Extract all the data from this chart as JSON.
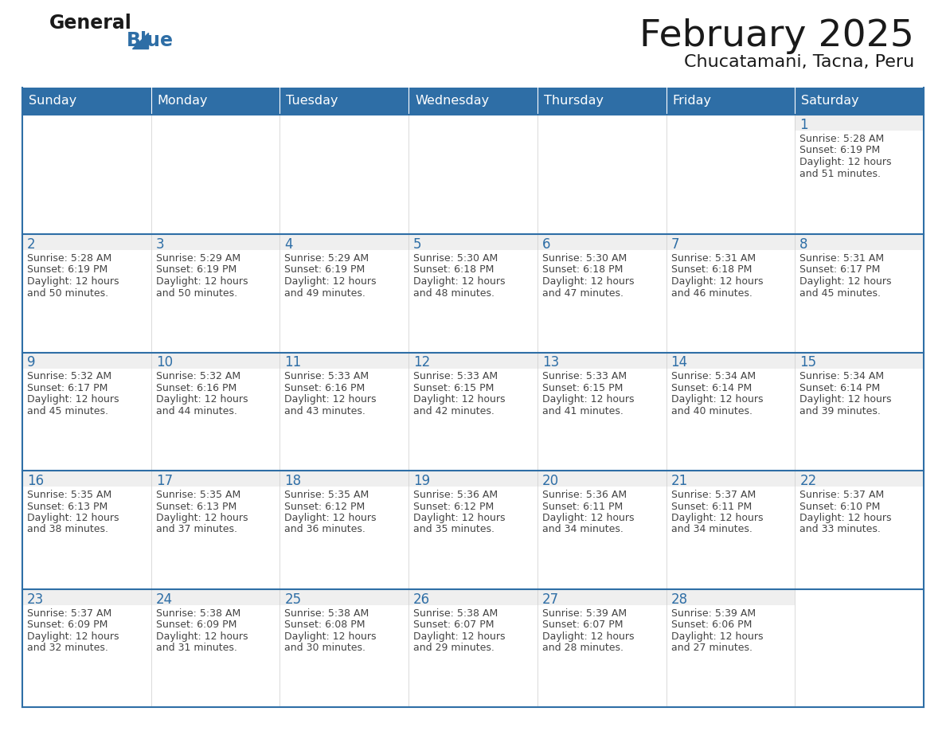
{
  "title": "February 2025",
  "subtitle": "Chucatamani, Tacna, Peru",
  "header_bg": "#2E6EA6",
  "header_text_color": "#FFFFFF",
  "cell_bg_white": "#FFFFFF",
  "cell_bg_gray": "#F0F0F0",
  "row_divider_color": "#2E6EA6",
  "day_number_color": "#2E6EA6",
  "cell_text_color": "#444444",
  "days_of_week": [
    "Sunday",
    "Monday",
    "Tuesday",
    "Wednesday",
    "Thursday",
    "Friday",
    "Saturday"
  ],
  "calendar_data": [
    [
      null,
      null,
      null,
      null,
      null,
      null,
      {
        "day": 1,
        "sunrise": "5:28 AM",
        "sunset": "6:19 PM",
        "daylight_hours": 12,
        "daylight_minutes": 51
      }
    ],
    [
      {
        "day": 2,
        "sunrise": "5:28 AM",
        "sunset": "6:19 PM",
        "daylight_hours": 12,
        "daylight_minutes": 50
      },
      {
        "day": 3,
        "sunrise": "5:29 AM",
        "sunset": "6:19 PM",
        "daylight_hours": 12,
        "daylight_minutes": 50
      },
      {
        "day": 4,
        "sunrise": "5:29 AM",
        "sunset": "6:19 PM",
        "daylight_hours": 12,
        "daylight_minutes": 49
      },
      {
        "day": 5,
        "sunrise": "5:30 AM",
        "sunset": "6:18 PM",
        "daylight_hours": 12,
        "daylight_minutes": 48
      },
      {
        "day": 6,
        "sunrise": "5:30 AM",
        "sunset": "6:18 PM",
        "daylight_hours": 12,
        "daylight_minutes": 47
      },
      {
        "day": 7,
        "sunrise": "5:31 AM",
        "sunset": "6:18 PM",
        "daylight_hours": 12,
        "daylight_minutes": 46
      },
      {
        "day": 8,
        "sunrise": "5:31 AM",
        "sunset": "6:17 PM",
        "daylight_hours": 12,
        "daylight_minutes": 45
      }
    ],
    [
      {
        "day": 9,
        "sunrise": "5:32 AM",
        "sunset": "6:17 PM",
        "daylight_hours": 12,
        "daylight_minutes": 45
      },
      {
        "day": 10,
        "sunrise": "5:32 AM",
        "sunset": "6:16 PM",
        "daylight_hours": 12,
        "daylight_minutes": 44
      },
      {
        "day": 11,
        "sunrise": "5:33 AM",
        "sunset": "6:16 PM",
        "daylight_hours": 12,
        "daylight_minutes": 43
      },
      {
        "day": 12,
        "sunrise": "5:33 AM",
        "sunset": "6:15 PM",
        "daylight_hours": 12,
        "daylight_minutes": 42
      },
      {
        "day": 13,
        "sunrise": "5:33 AM",
        "sunset": "6:15 PM",
        "daylight_hours": 12,
        "daylight_minutes": 41
      },
      {
        "day": 14,
        "sunrise": "5:34 AM",
        "sunset": "6:14 PM",
        "daylight_hours": 12,
        "daylight_minutes": 40
      },
      {
        "day": 15,
        "sunrise": "5:34 AM",
        "sunset": "6:14 PM",
        "daylight_hours": 12,
        "daylight_minutes": 39
      }
    ],
    [
      {
        "day": 16,
        "sunrise": "5:35 AM",
        "sunset": "6:13 PM",
        "daylight_hours": 12,
        "daylight_minutes": 38
      },
      {
        "day": 17,
        "sunrise": "5:35 AM",
        "sunset": "6:13 PM",
        "daylight_hours": 12,
        "daylight_minutes": 37
      },
      {
        "day": 18,
        "sunrise": "5:35 AM",
        "sunset": "6:12 PM",
        "daylight_hours": 12,
        "daylight_minutes": 36
      },
      {
        "day": 19,
        "sunrise": "5:36 AM",
        "sunset": "6:12 PM",
        "daylight_hours": 12,
        "daylight_minutes": 35
      },
      {
        "day": 20,
        "sunrise": "5:36 AM",
        "sunset": "6:11 PM",
        "daylight_hours": 12,
        "daylight_minutes": 34
      },
      {
        "day": 21,
        "sunrise": "5:37 AM",
        "sunset": "6:11 PM",
        "daylight_hours": 12,
        "daylight_minutes": 34
      },
      {
        "day": 22,
        "sunrise": "5:37 AM",
        "sunset": "6:10 PM",
        "daylight_hours": 12,
        "daylight_minutes": 33
      }
    ],
    [
      {
        "day": 23,
        "sunrise": "5:37 AM",
        "sunset": "6:09 PM",
        "daylight_hours": 12,
        "daylight_minutes": 32
      },
      {
        "day": 24,
        "sunrise": "5:38 AM",
        "sunset": "6:09 PM",
        "daylight_hours": 12,
        "daylight_minutes": 31
      },
      {
        "day": 25,
        "sunrise": "5:38 AM",
        "sunset": "6:08 PM",
        "daylight_hours": 12,
        "daylight_minutes": 30
      },
      {
        "day": 26,
        "sunrise": "5:38 AM",
        "sunset": "6:07 PM",
        "daylight_hours": 12,
        "daylight_minutes": 29
      },
      {
        "day": 27,
        "sunrise": "5:39 AM",
        "sunset": "6:07 PM",
        "daylight_hours": 12,
        "daylight_minutes": 28
      },
      {
        "day": 28,
        "sunrise": "5:39 AM",
        "sunset": "6:06 PM",
        "daylight_hours": 12,
        "daylight_minutes": 27
      },
      null
    ]
  ]
}
